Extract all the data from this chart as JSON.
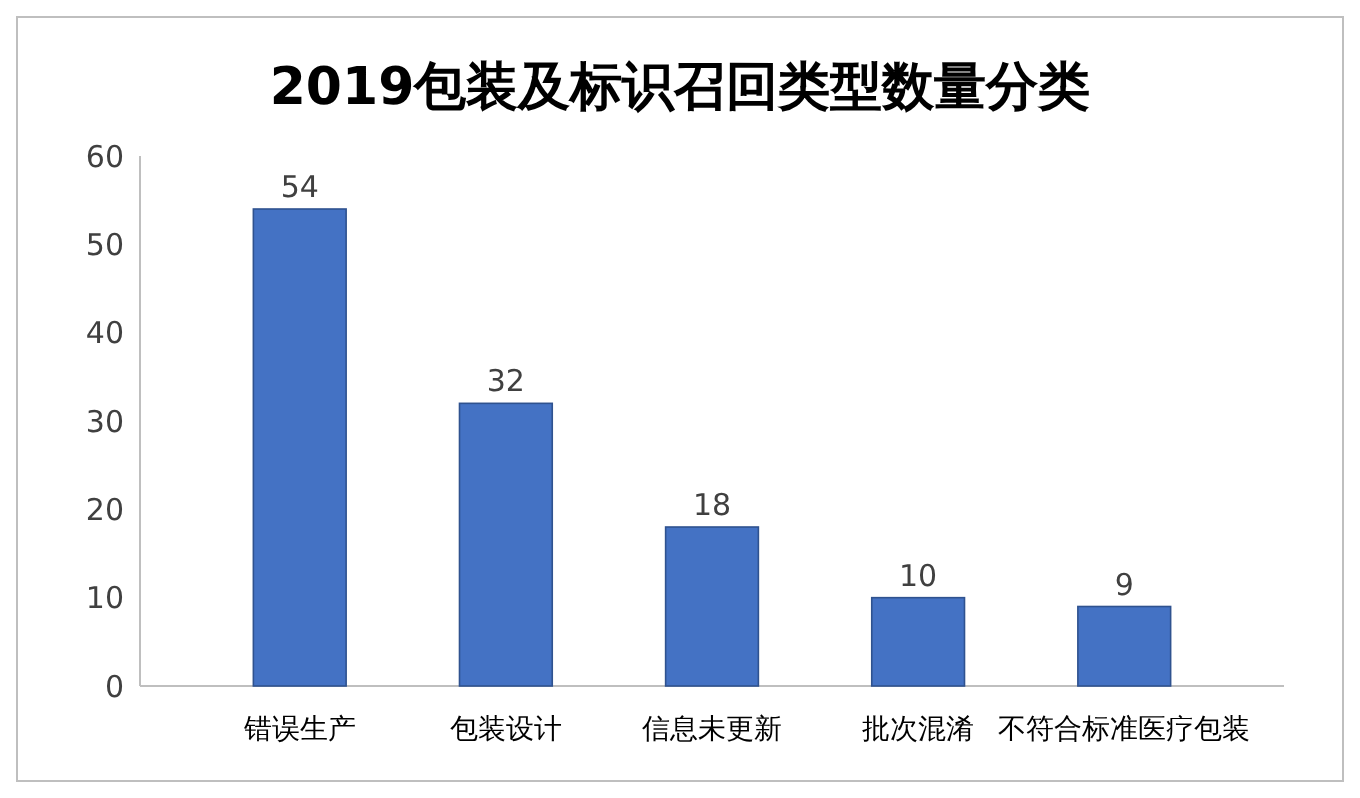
{
  "chart_data": {
    "type": "bar",
    "title": "2019包装及标识召回类型数量分类",
    "categories": [
      "错误生产",
      "包装设计",
      "信息未更新",
      "批次混淆",
      "不符合标准医疗包装"
    ],
    "values": [
      54,
      32,
      18,
      10,
      9
    ],
    "color": "#4472c4",
    "ylim": [
      0,
      60
    ],
    "yticks": [
      0,
      10,
      20,
      30,
      40,
      50,
      60
    ],
    "data_labels": true,
    "grid": false
  }
}
